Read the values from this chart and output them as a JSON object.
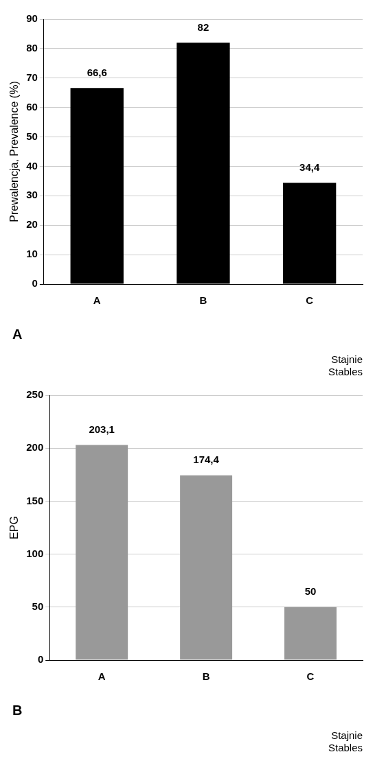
{
  "chart_data": [
    {
      "type": "bar",
      "categories": [
        "A",
        "B",
        "C"
      ],
      "values": [
        66.6,
        82,
        34.4
      ],
      "color": "#000000",
      "value_labels": [
        "66,6",
        "82",
        "34,4"
      ],
      "ylabel": "Prewalencja, Prevalence (%)",
      "xlabel": "Stajnie\nStables",
      "ylim": [
        0,
        90
      ],
      "yticks": [
        0,
        10,
        20,
        30,
        40,
        50,
        60,
        70,
        80,
        90
      ],
      "grid": "y",
      "annotations": [
        "A"
      ]
    },
    {
      "type": "bar",
      "categories": [
        "A",
        "B",
        "C"
      ],
      "values": [
        203.1,
        174.4,
        50
      ],
      "color": "#999999",
      "value_labels": [
        "203,1",
        "174,4",
        "50"
      ],
      "ylabel": "EPG",
      "xlabel": "Stajnie\nStables",
      "ylim": [
        0,
        250
      ],
      "yticks": [
        0,
        50,
        100,
        150,
        200,
        250
      ],
      "grid": "y",
      "annotations": [
        "B"
      ]
    }
  ]
}
